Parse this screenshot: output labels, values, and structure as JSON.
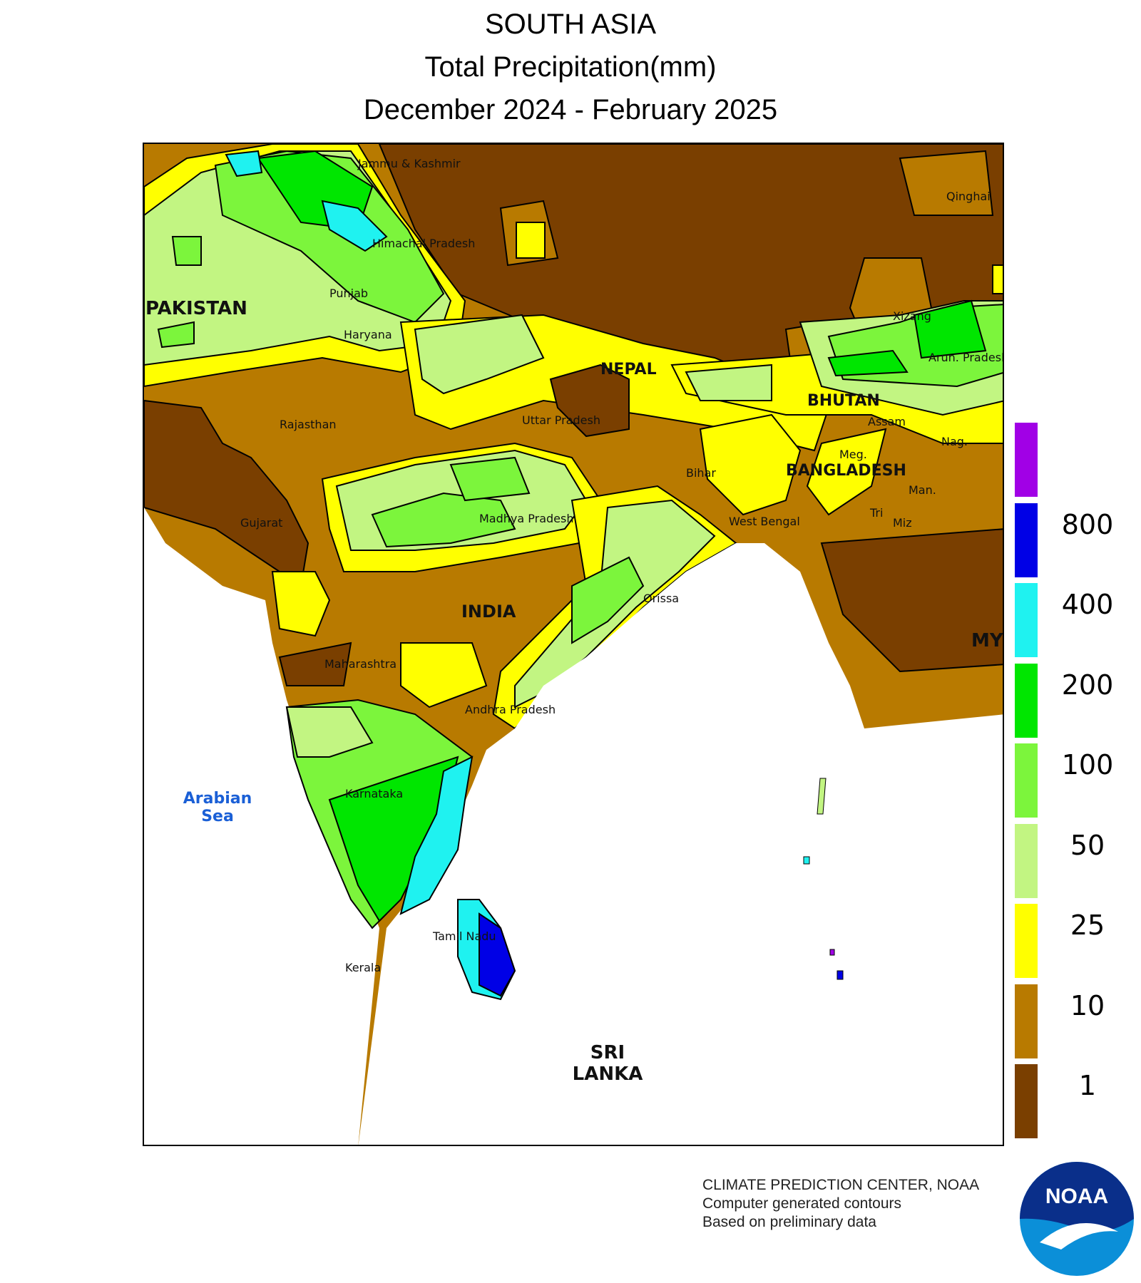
{
  "title": {
    "line1": "SOUTH ASIA",
    "line2": "Total Precipitation(mm)",
    "line3": "December 2024 - February 2025"
  },
  "legend": {
    "bins": [
      {
        "color": "#7a3f00"
      },
      {
        "color": "#b87a00"
      },
      {
        "color": "#ffff00"
      },
      {
        "color": "#c2f582"
      },
      {
        "color": "#7cf53c"
      },
      {
        "color": "#00e600"
      },
      {
        "color": "#1ff2f0"
      },
      {
        "color": "#0000e6"
      },
      {
        "color": "#a100e6"
      }
    ],
    "ticks": [
      "1",
      "10",
      "25",
      "50",
      "100",
      "200",
      "400",
      "800"
    ]
  },
  "labels": {
    "jammu_kashmir": "Jammu & Kashmir",
    "himachal": "Himachal Pradesh",
    "punjab": "Punjab",
    "haryana": "Haryana",
    "pakistan": "PAKISTAN",
    "nepal": "NEPAL",
    "qinghai": "Qinghai",
    "xizang": "Xizang",
    "arun": "Arun. Pradesh",
    "bhutan": "BHUTAN",
    "assam": "Assam",
    "nag": "Nag.",
    "meg": "Meg.",
    "man": "Man.",
    "tri": "Tri",
    "miz": "Miz",
    "bangladesh": "BANGLADESH",
    "uttar": "Uttar Pradesh",
    "bihar": "Bihar",
    "rajasthan": "Rajasthan",
    "gujarat": "Gujarat",
    "madhya": "Madhya Pradesh",
    "west_bengal": "West Bengal",
    "india": "INDIA",
    "orissa": "Orissa",
    "maharashtra": "Maharashtra",
    "andhra": "Andhra Pradesh",
    "karnataka": "Karnataka",
    "arabian_sea": "Arabian Sea",
    "tamil": "Tamil Nadu",
    "kerala": "Kerala",
    "sri_lanka": "SRI LANKA",
    "my": "MY"
  },
  "credits": {
    "line1": "CLIMATE PREDICTION CENTER, NOAA",
    "line2": "Computer generated contours",
    "line3": "Based on preliminary data"
  },
  "logo": {
    "text": "NOAA"
  }
}
